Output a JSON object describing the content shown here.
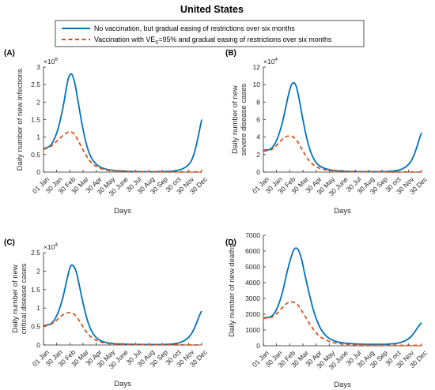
{
  "figure": {
    "title": "United States",
    "legend": {
      "placement": "top-center",
      "entries": [
        {
          "text": "No vaccination, but gradual easing of restrictions over six months",
          "color": "#0072BD",
          "style": "solid"
        },
        {
          "text_prefix": "Vaccination with VE",
          "text_sub": "S",
          "text_suffix": "=95% and gradual easing of restrictions over six months",
          "color": "#D95319",
          "style": "dashed"
        }
      ]
    }
  },
  "chart_data": [
    {
      "type": "line",
      "panel_label": "(A)",
      "ylabel": [
        "Daily number of new infections"
      ],
      "xlabel": "Days",
      "y_multiplier": "×10",
      "y_exponent": "6",
      "ylim": [
        0,
        3
      ],
      "yticks": [
        "0",
        "0.5",
        "1",
        "1.5",
        "2",
        "2.5",
        "3"
      ],
      "x_tick_labels": [
        "01 Jan",
        "30 Jan",
        "30 Feb",
        "30 Mar",
        "30 Apr",
        "30 May",
        "30 June",
        "30 Jul",
        "30 Aug",
        "30 Sep",
        "30 oct",
        "30 Nov",
        "30 Dec"
      ],
      "xlim": [
        0,
        365
      ],
      "series": [
        {
          "name": "No vaccination, but gradual easing of restrictions over six months",
          "x": [
            0,
            15,
            25,
            35,
            45,
            52,
            58,
            65,
            72,
            80,
            90,
            100,
            110,
            120,
            130,
            140,
            150,
            160,
            170,
            180,
            190,
            200,
            220,
            240,
            260,
            280,
            300,
            310,
            320,
            330,
            340,
            348,
            355,
            360,
            365
          ],
          "y": [
            0.67,
            0.75,
            0.95,
            1.3,
            1.85,
            2.35,
            2.7,
            2.8,
            2.55,
            2.0,
            1.3,
            0.75,
            0.42,
            0.25,
            0.15,
            0.1,
            0.07,
            0.05,
            0.04,
            0.03,
            0.025,
            0.02,
            0.015,
            0.012,
            0.012,
            0.015,
            0.03,
            0.05,
            0.09,
            0.16,
            0.3,
            0.55,
            0.9,
            1.2,
            1.5
          ]
        },
        {
          "name": "Vaccination with VE_S=95% and gradual easing of restrictions over six months",
          "x": [
            0,
            15,
            25,
            35,
            45,
            55,
            62,
            70,
            78,
            85,
            95,
            105,
            115,
            125,
            135,
            145,
            160,
            180,
            200,
            240,
            280,
            320,
            365
          ],
          "y": [
            0.65,
            0.72,
            0.82,
            0.93,
            1.05,
            1.13,
            1.15,
            1.1,
            0.95,
            0.78,
            0.55,
            0.35,
            0.22,
            0.14,
            0.09,
            0.06,
            0.04,
            0.025,
            0.015,
            0.008,
            0.005,
            0.004,
            0.004
          ]
        }
      ]
    },
    {
      "type": "line",
      "panel_label": "(B)",
      "ylabel": [
        "Daily number of new",
        "severe disease cases"
      ],
      "xlabel": "Days",
      "y_multiplier": "×10",
      "y_exponent": "4",
      "ylim": [
        0,
        12
      ],
      "yticks": [
        "0",
        "2",
        "4",
        "6",
        "8",
        "10",
        "12"
      ],
      "x_tick_labels": [
        "01 Jan",
        "30 Jan",
        "30 Feb",
        "30 Mar",
        "30 Apr",
        "30 May",
        "30 June",
        "30 Jul",
        "30 Aug",
        "30 Sep",
        "30 oct",
        "30 Nov",
        "30 Dec"
      ],
      "xlim": [
        0,
        365
      ],
      "series": [
        {
          "name": "No vaccination, but gradual easing of restrictions over six months",
          "x": [
            0,
            15,
            25,
            35,
            45,
            55,
            62,
            68,
            75,
            82,
            90,
            100,
            110,
            120,
            130,
            140,
            150,
            160,
            180,
            200,
            220,
            240,
            260,
            280,
            300,
            310,
            320,
            330,
            340,
            348,
            355,
            360,
            365
          ],
          "y": [
            2.5,
            2.6,
            3.1,
            4.2,
            5.9,
            8.2,
            9.6,
            10.2,
            9.9,
            8.5,
            6.3,
            3.9,
            2.2,
            1.2,
            0.7,
            0.45,
            0.3,
            0.2,
            0.12,
            0.08,
            0.06,
            0.05,
            0.05,
            0.06,
            0.12,
            0.2,
            0.36,
            0.65,
            1.2,
            2.0,
            3.0,
            3.8,
            4.5
          ]
        },
        {
          "name": "Vaccination with VE_S=95% and gradual easing of restrictions over six months",
          "x": [
            0,
            15,
            25,
            35,
            45,
            55,
            65,
            72,
            80,
            88,
            95,
            105,
            115,
            125,
            135,
            145,
            160,
            180,
            200,
            240,
            280,
            320,
            365
          ],
          "y": [
            2.4,
            2.5,
            2.8,
            3.3,
            3.8,
            4.1,
            4.1,
            3.9,
            3.4,
            2.7,
            2.1,
            1.35,
            0.85,
            0.55,
            0.35,
            0.24,
            0.14,
            0.08,
            0.05,
            0.03,
            0.02,
            0.015,
            0.01
          ]
        }
      ]
    },
    {
      "type": "line",
      "panel_label": "(C)",
      "ylabel": [
        "Daily number of new",
        "critical disease cases"
      ],
      "xlabel": "Days",
      "y_multiplier": "×10",
      "y_exponent": "4",
      "ylim": [
        0,
        2.5
      ],
      "yticks": [
        "0",
        "0.5",
        "1",
        "1.5",
        "2",
        "2.5"
      ],
      "x_tick_labels": [
        "01 Jan",
        "30 Jan",
        "30 Feb",
        "30 Mar",
        "30 Apr",
        "30 May",
        "30 June",
        "30 Jul",
        "30 Aug",
        "30 Sep",
        "30 oct",
        "30 Nov",
        "30 Dec"
      ],
      "xlim": [
        0,
        365
      ],
      "series": [
        {
          "name": "No vaccination, but gradual easing of restrictions over six months",
          "x": [
            0,
            15,
            25,
            35,
            45,
            55,
            62,
            68,
            75,
            82,
            90,
            100,
            110,
            120,
            130,
            140,
            150,
            160,
            180,
            200,
            220,
            240,
            260,
            280,
            300,
            310,
            320,
            330,
            340,
            348,
            355,
            360,
            365
          ],
          "y": [
            0.53,
            0.56,
            0.68,
            0.92,
            1.3,
            1.82,
            2.12,
            2.15,
            2.0,
            1.65,
            1.2,
            0.72,
            0.4,
            0.22,
            0.13,
            0.08,
            0.055,
            0.04,
            0.025,
            0.018,
            0.015,
            0.013,
            0.013,
            0.016,
            0.03,
            0.05,
            0.09,
            0.16,
            0.28,
            0.45,
            0.65,
            0.8,
            0.92
          ]
        },
        {
          "name": "Vaccination with VE_S=95% and gradual easing of restrictions over six months",
          "x": [
            0,
            15,
            25,
            35,
            45,
            55,
            65,
            72,
            80,
            88,
            95,
            105,
            115,
            125,
            135,
            145,
            160,
            180,
            200,
            240,
            280,
            320,
            365
          ],
          "y": [
            0.52,
            0.55,
            0.62,
            0.72,
            0.82,
            0.87,
            0.87,
            0.82,
            0.7,
            0.55,
            0.42,
            0.27,
            0.17,
            0.11,
            0.07,
            0.05,
            0.03,
            0.018,
            0.012,
            0.007,
            0.005,
            0.004,
            0.003
          ]
        }
      ]
    },
    {
      "type": "line",
      "panel_label": "(D)",
      "ylabel": [
        "Daily number of new deaths"
      ],
      "xlabel": "Days",
      "y_multiplier": "",
      "y_exponent": "",
      "ylim": [
        0,
        7000
      ],
      "yticks": [
        "0",
        "1000",
        "2000",
        "3000",
        "4000",
        "5000",
        "6000",
        "7000"
      ],
      "x_tick_labels": [
        "01 Jan",
        "30 Jan",
        "30 Feb",
        "30 Mar",
        "30 Apr",
        "30 May",
        "30 June",
        "30 Jul",
        "30 Aug",
        "30 Sep",
        "30 oct",
        "30 Nov",
        "30 Dec"
      ],
      "xlim": [
        0,
        365
      ],
      "series": [
        {
          "name": "No vaccination, but gradual easing of restrictions over six months",
          "x": [
            0,
            15,
            25,
            35,
            45,
            55,
            65,
            72,
            80,
            88,
            95,
            105,
            115,
            125,
            135,
            145,
            155,
            165,
            180,
            200,
            220,
            240,
            260,
            280,
            300,
            310,
            320,
            330,
            340,
            348,
            355,
            360,
            365
          ],
          "y": [
            1780,
            1820,
            2050,
            2600,
            3500,
            4700,
            5700,
            6150,
            6100,
            5500,
            4600,
            3400,
            2300,
            1500,
            950,
            620,
            420,
            300,
            200,
            140,
            110,
            95,
            90,
            95,
            130,
            170,
            240,
            360,
            560,
            830,
            1120,
            1300,
            1460
          ]
        },
        {
          "name": "Vaccination with VE_S=95% and gradual easing of restrictions over six months",
          "x": [
            0,
            15,
            25,
            35,
            45,
            55,
            65,
            75,
            82,
            90,
            100,
            110,
            120,
            130,
            140,
            150,
            160,
            180,
            200,
            240,
            280,
            320,
            365
          ],
          "y": [
            1750,
            1780,
            1900,
            2150,
            2450,
            2700,
            2780,
            2700,
            2500,
            2150,
            1700,
            1250,
            880,
            600,
            420,
            300,
            210,
            120,
            80,
            45,
            30,
            25,
            20
          ]
        }
      ]
    }
  ]
}
